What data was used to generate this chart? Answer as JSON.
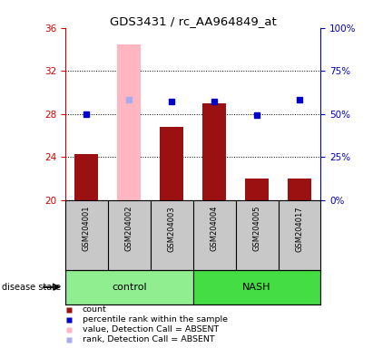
{
  "title": "GDS3431 / rc_AA964849_at",
  "samples": [
    "GSM204001",
    "GSM204002",
    "GSM204003",
    "GSM204004",
    "GSM204005",
    "GSM204017"
  ],
  "groups": [
    "control",
    "control",
    "control",
    "NASH",
    "NASH",
    "NASH"
  ],
  "bar_values": [
    24.3,
    34.5,
    26.8,
    29.0,
    22.0,
    22.0
  ],
  "bar_absent": [
    false,
    true,
    false,
    false,
    false,
    false
  ],
  "dot_values": [
    28.0,
    29.3,
    29.2,
    29.2,
    27.9,
    29.3
  ],
  "dot_absent": [
    false,
    true,
    false,
    false,
    false,
    false
  ],
  "ylim_left": [
    20,
    36
  ],
  "ylim_right": [
    0,
    100
  ],
  "yticks_left": [
    20,
    24,
    28,
    32,
    36
  ],
  "yticks_right": [
    0,
    25,
    50,
    75,
    100
  ],
  "control_color": "#90EE90",
  "nash_color": "#44DD44",
  "bar_color": "#9B1010",
  "bar_absent_color": "#FFB6C1",
  "dot_color": "#0000CD",
  "dot_absent_color": "#AAAAEE",
  "bg_color": "#C8C8C8",
  "left_axis_color": "#CC0000",
  "right_axis_color": "#0000BB",
  "grid_yticks": [
    24,
    28,
    32
  ]
}
